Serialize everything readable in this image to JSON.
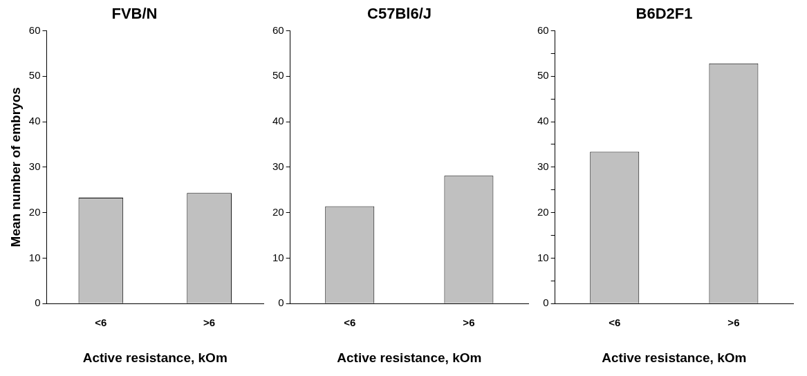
{
  "chart_data": [
    {
      "type": "bar",
      "title": "FVB/N",
      "categories": [
        "<6",
        ">6"
      ],
      "values": [
        23.3,
        24.3
      ],
      "color": "#c0c0c0",
      "xlabel": "Active resistance, kOm",
      "ylabel": "Mean number of embryos",
      "ylim": [
        0,
        60
      ],
      "yticks": [
        0,
        10,
        20,
        30,
        40,
        50,
        60
      ]
    },
    {
      "type": "bar",
      "title": "C57Bl6/J",
      "categories": [
        "<6",
        ">6"
      ],
      "values": [
        21.4,
        28.1
      ],
      "color": "#c0c0c0",
      "xlabel": "Active resistance, kOm",
      "ylim": [
        0,
        60
      ],
      "yticks": [
        0,
        10,
        20,
        30,
        40,
        50,
        60
      ]
    },
    {
      "type": "bar",
      "title": "B6D2F1",
      "categories": [
        "<6",
        ">6"
      ],
      "values": [
        33.4,
        52.8
      ],
      "color": "#c0c0c0",
      "xlabel": "Active resistance, kOm",
      "ylim": [
        0,
        60
      ],
      "yticks": [
        0,
        {
          "value": 5,
          "label": null
        },
        10,
        {
          "value": 15,
          "label": null
        },
        20,
        {
          "value": 25,
          "label": null
        },
        30,
        {
          "value": 35,
          "label": null
        },
        40,
        {
          "value": 45,
          "label": null
        },
        50,
        {
          "value": 55,
          "label": null
        },
        60
      ]
    }
  ]
}
